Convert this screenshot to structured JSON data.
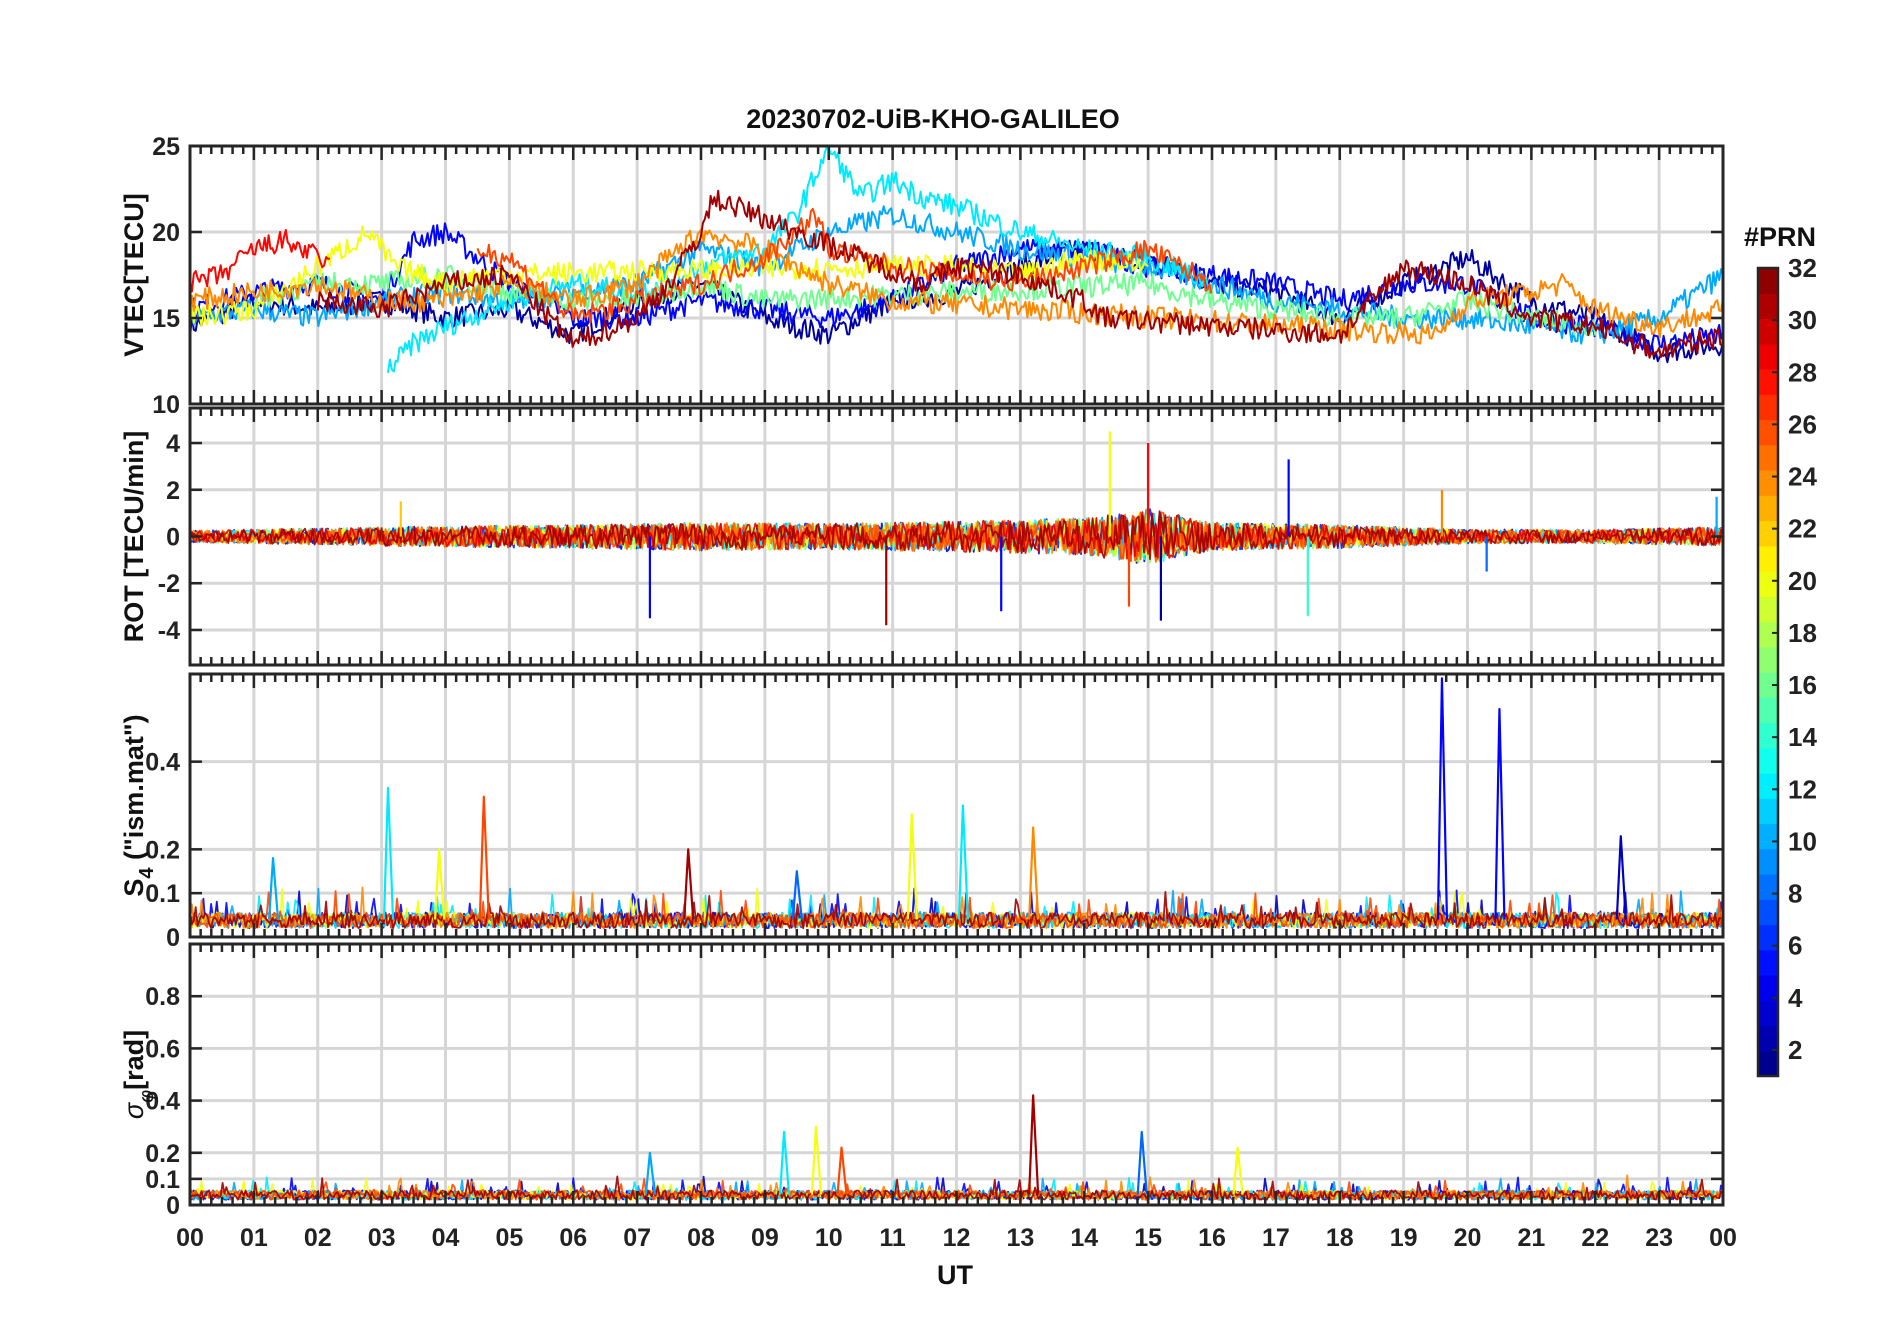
{
  "chart_data": {
    "type": "line",
    "title": "20230702-UiB-KHO-GALILEO",
    "xlabel": "UT",
    "x_ticks": [
      "00",
      "01",
      "02",
      "03",
      "04",
      "05",
      "06",
      "07",
      "08",
      "09",
      "10",
      "11",
      "12",
      "13",
      "14",
      "15",
      "16",
      "17",
      "18",
      "19",
      "20",
      "21",
      "22",
      "23",
      "00"
    ],
    "xlim": [
      0,
      24
    ],
    "panels": [
      {
        "id": "vtec",
        "ylabel": "VTEC[TECU]",
        "ylim": [
          10,
          25
        ],
        "y_ticks": [
          10,
          15,
          20,
          25
        ],
        "y_tick_labels": [
          "10",
          "15",
          "20",
          "25"
        ],
        "kind": "vtec",
        "series": [
          {
            "name": "PRN 2",
            "prn": 2,
            "points": [
              [
                0,
                14.5
              ],
              [
                1,
                16
              ],
              [
                2,
                15.5
              ],
              [
                3,
                16
              ],
              [
                4,
                15
              ],
              [
                5,
                15.5
              ],
              [
                6,
                14
              ],
              [
                7,
                16
              ],
              [
                8,
                17
              ],
              [
                9,
                15
              ],
              [
                10,
                14
              ],
              [
                11,
                16
              ],
              [
                12,
                16.5
              ],
              [
                13,
                18
              ],
              [
                14,
                19
              ],
              [
                15,
                18.5
              ],
              [
                16,
                17
              ],
              [
                17,
                16.5
              ],
              [
                18,
                15
              ],
              [
                19,
                17
              ],
              [
                20,
                18.5
              ],
              [
                21,
                16
              ],
              [
                22,
                15
              ],
              [
                23,
                13
              ],
              [
                24,
                13.5
              ]
            ]
          },
          {
            "name": "PRN 5",
            "prn": 5,
            "points": [
              [
                0,
                15.5
              ],
              [
                1,
                16.5
              ],
              [
                2,
                17
              ],
              [
                3,
                16
              ],
              [
                3.5,
                19.5
              ],
              [
                4,
                20
              ],
              [
                5,
                17
              ],
              [
                6,
                15
              ],
              [
                7,
                15
              ],
              [
                8,
                16
              ],
              [
                9,
                15.5
              ],
              [
                10,
                15
              ],
              [
                11,
                16
              ],
              [
                12,
                18
              ],
              [
                13,
                19
              ],
              [
                14,
                19
              ],
              [
                15,
                18
              ],
              [
                16,
                17.5
              ],
              [
                17,
                17
              ],
              [
                18,
                16
              ],
              [
                19,
                17
              ],
              [
                20,
                17
              ],
              [
                21,
                15
              ],
              [
                22,
                14.5
              ],
              [
                23,
                13.5
              ],
              [
                24,
                14
              ]
            ]
          },
          {
            "name": "PRN 10",
            "prn": 10,
            "points": [
              [
                0,
                15
              ],
              [
                1,
                15.5
              ],
              [
                2,
                15
              ],
              [
                3,
                16
              ],
              [
                4,
                16.5
              ],
              [
                5,
                16
              ],
              [
                6,
                16.5
              ],
              [
                7,
                17
              ],
              [
                8,
                19
              ],
              [
                9,
                18
              ],
              [
                10,
                20
              ],
              [
                11,
                21
              ],
              [
                12,
                20
              ],
              [
                13,
                19
              ],
              [
                14,
                18.5
              ],
              [
                15,
                18
              ],
              [
                16,
                17
              ],
              [
                17,
                16
              ],
              [
                18,
                15.5
              ],
              [
                19,
                15
              ],
              [
                20,
                15
              ],
              [
                21,
                14.5
              ],
              [
                22,
                14
              ],
              [
                23,
                15
              ],
              [
                24,
                17.5
              ]
            ]
          },
          {
            "name": "PRN 12",
            "prn": 12,
            "points": [
              [
                3.1,
                12
              ],
              [
                3.5,
                13.5
              ],
              [
                4,
                14.5
              ],
              [
                5,
                16
              ],
              [
                6,
                17
              ],
              [
                7,
                16.5
              ],
              [
                8,
                18
              ],
              [
                9,
                19
              ],
              [
                9.5,
                21
              ],
              [
                10,
                25
              ],
              [
                10.5,
                22
              ],
              [
                11,
                23
              ],
              [
                11.5,
                22
              ],
              [
                12,
                21.5
              ],
              [
                13,
                20
              ],
              [
                14,
                19
              ],
              [
                15,
                18.5
              ],
              [
                16,
                17
              ]
            ]
          },
          {
            "name": "PRN 16",
            "prn": 16,
            "points": [
              [
                1,
                16
              ],
              [
                2,
                17
              ],
              [
                3,
                17
              ],
              [
                4,
                17.5
              ],
              [
                5,
                16.5
              ],
              [
                6,
                16
              ],
              [
                7,
                16
              ],
              [
                8,
                17
              ],
              [
                9,
                16
              ],
              [
                15,
                17
              ],
              [
                16,
                16
              ],
              [
                17,
                15.5
              ],
              [
                18,
                15
              ],
              [
                19,
                15
              ],
              [
                20,
                16
              ],
              [
                21,
                15
              ],
              [
                22,
                14.5
              ]
            ]
          },
          {
            "name": "PRN 20",
            "prn": 20,
            "points": [
              [
                0,
                15
              ],
              [
                1,
                15.5
              ],
              [
                2,
                18
              ],
              [
                2.8,
                20
              ],
              [
                3.2,
                18
              ],
              [
                4,
                17
              ],
              [
                4.5,
                17.5
              ],
              [
                11,
                18
              ],
              [
                12,
                18
              ],
              [
                13,
                17.5
              ],
              [
                14,
                18.5
              ],
              [
                15,
                18
              ]
            ]
          },
          {
            "name": "PRN 24",
            "prn": 24,
            "points": [
              [
                0,
                16
              ],
              [
                1,
                16.5
              ],
              [
                2,
                17
              ],
              [
                3,
                16
              ],
              [
                4,
                16
              ],
              [
                5,
                17
              ],
              [
                6,
                16
              ],
              [
                7,
                17
              ],
              [
                8,
                20
              ],
              [
                9,
                19
              ],
              [
                10,
                17
              ],
              [
                11,
                16
              ],
              [
                19.5,
                14
              ],
              [
                20,
                16
              ],
              [
                21,
                16.5
              ],
              [
                21.5,
                17
              ],
              [
                22,
                15.5
              ],
              [
                23,
                14.5
              ],
              [
                24,
                15.5
              ]
            ]
          },
          {
            "name": "PRN 26",
            "prn": 26,
            "points": [
              [
                4.5,
                19
              ],
              [
                5,
                18.5
              ],
              [
                6,
                15
              ],
              [
                7,
                16
              ],
              [
                8,
                17
              ],
              [
                9,
                18.5
              ],
              [
                9.8,
                21
              ],
              [
                10,
                19
              ],
              [
                11,
                18
              ],
              [
                12,
                17.5
              ],
              [
                13,
                17
              ],
              [
                14,
                18
              ],
              [
                15,
                19
              ],
              [
                16,
                17
              ]
            ]
          },
          {
            "name": "PRN 28",
            "prn": 28,
            "points": [
              [
                0,
                17
              ],
              [
                0.5,
                17.5
              ],
              [
                1,
                19
              ],
              [
                1.5,
                19.5
              ],
              [
                2,
                18.5
              ],
              [
                2.2,
                18
              ]
            ]
          },
          {
            "name": "PRN 31",
            "prn": 31,
            "points": [
              [
                2,
                16
              ],
              [
                3,
                15.5
              ],
              [
                4,
                17
              ],
              [
                5,
                17.5
              ],
              [
                6,
                13.5
              ],
              [
                7,
                15
              ],
              [
                7.5,
                17
              ],
              [
                8,
                20
              ],
              [
                8.2,
                22
              ],
              [
                11.5,
                17
              ],
              [
                12,
                18
              ],
              [
                13,
                17.5
              ],
              [
                14,
                16
              ],
              [
                14.3,
                15
              ],
              [
                18,
                14
              ],
              [
                19,
                18
              ],
              [
                20,
                17
              ],
              [
                21,
                15
              ],
              [
                22,
                14.5
              ],
              [
                23,
                13
              ],
              [
                24,
                14
              ]
            ]
          }
        ]
      },
      {
        "id": "rot",
        "ylabel": "ROT [TECU/min]",
        "ylim": [
          -5.5,
          5.5
        ],
        "y_ticks": [
          -4,
          -2,
          0,
          2,
          4
        ],
        "y_tick_labels": [
          "-4",
          "-2",
          "0",
          "2",
          "4"
        ],
        "kind": "rot",
        "activity": [
          [
            0,
            0.5
          ],
          [
            2,
            0.7
          ],
          [
            4,
            0.9
          ],
          [
            6,
            1
          ],
          [
            8,
            1.2
          ],
          [
            10,
            1.1
          ],
          [
            12,
            1.3
          ],
          [
            14,
            1.6
          ],
          [
            15,
            2.4
          ],
          [
            16,
            1.2
          ],
          [
            18,
            1
          ],
          [
            20,
            0.6
          ],
          [
            22,
            0.6
          ],
          [
            24,
            0.8
          ]
        ],
        "spikes": [
          [
            3.3,
            1.5
          ],
          [
            7.2,
            -3.5
          ],
          [
            10.9,
            -3.8
          ],
          [
            12.7,
            -3.2
          ],
          [
            14.4,
            4.5
          ],
          [
            14.7,
            -3
          ],
          [
            15,
            4
          ],
          [
            15.2,
            -3.6
          ],
          [
            17.2,
            3.3
          ],
          [
            17.5,
            -3.4
          ],
          [
            19.6,
            2
          ],
          [
            20.3,
            -1.5
          ],
          [
            23.9,
            1.7
          ]
        ]
      },
      {
        "id": "s4",
        "ylabel": "S4 (\"ism.mat\")",
        "ylabel_main": "S",
        "ylabel_sub": "4",
        "ylabel_rest": " (\"ism.mat\")",
        "ylim": [
          0,
          0.6
        ],
        "y_ticks": [
          0,
          0.1,
          0.2,
          0.4
        ],
        "y_tick_labels": [
          "0",
          "0.1",
          "0.2",
          "0.4"
        ],
        "kind": "spiky",
        "baseline": 0.04,
        "spikes": [
          [
            1.3,
            0.18
          ],
          [
            3.1,
            0.34
          ],
          [
            3.9,
            0.2
          ],
          [
            4.6,
            0.32
          ],
          [
            7.8,
            0.2
          ],
          [
            9.5,
            0.15
          ],
          [
            11.3,
            0.28
          ],
          [
            12.1,
            0.3
          ],
          [
            13.2,
            0.25
          ],
          [
            19.6,
            0.59
          ],
          [
            20.5,
            0.52
          ],
          [
            22.4,
            0.23
          ]
        ]
      },
      {
        "id": "sigphi",
        "ylabel": "σφ[rad]",
        "ylabel_main": "σ",
        "ylabel_sub": "φ",
        "ylabel_rest": "[rad]",
        "ylim": [
          0,
          1
        ],
        "y_ticks": [
          0,
          0.1,
          0.2,
          0.4,
          0.6,
          0.8
        ],
        "y_tick_labels": [
          "0",
          "0.1",
          "0.2",
          "0.4",
          "0.6",
          "0.8"
        ],
        "kind": "spiky",
        "baseline": 0.04,
        "spikes": [
          [
            7.2,
            0.2
          ],
          [
            9.3,
            0.28
          ],
          [
            9.8,
            0.3
          ],
          [
            10.2,
            0.22
          ],
          [
            13.2,
            0.42
          ],
          [
            14.9,
            0.28
          ],
          [
            16.4,
            0.22
          ]
        ]
      }
    ],
    "colorbar": {
      "label": "#PRN",
      "range": [
        1,
        32
      ],
      "tick_labels": [
        "2",
        "4",
        "6",
        "8",
        "10",
        "12",
        "14",
        "16",
        "18",
        "20",
        "22",
        "24",
        "26",
        "28",
        "30",
        "32"
      ],
      "colormap": "jet"
    }
  }
}
